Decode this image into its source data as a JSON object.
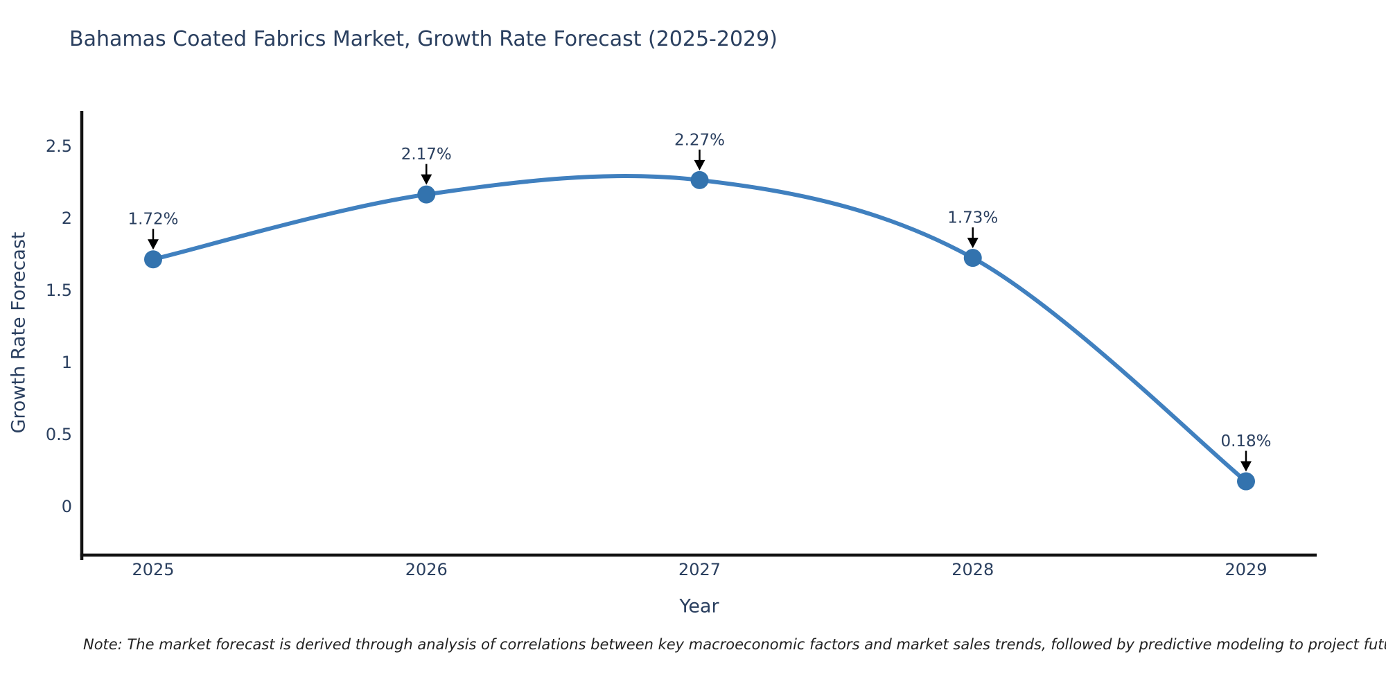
{
  "title": "Bahamas Coated Fabrics Market, Growth Rate Forecast (2025-2029)",
  "note": "Note: The market forecast is derived through analysis of correlations between key macroeconomic factors and market sales trends, followed by predictive modeling to project future sales",
  "chart_data": {
    "type": "line",
    "title": "Bahamas Coated Fabrics Market, Growth Rate Forecast (2025-2029)",
    "xlabel": "Year",
    "ylabel": "Growth Rate Forecast",
    "x": [
      2025,
      2026,
      2027,
      2028,
      2029
    ],
    "series": [
      {
        "name": "Growth Rate Forecast",
        "values": [
          1.72,
          2.17,
          2.27,
          1.73,
          0.18
        ],
        "point_labels": [
          "1.72%",
          "2.17%",
          "2.27%",
          "1.73%",
          "0.18%"
        ]
      }
    ],
    "yticks": [
      "0",
      "0.5",
      "1",
      "1.5",
      "2",
      "2.5"
    ],
    "ytick_values": [
      0,
      0.5,
      1,
      1.5,
      2,
      2.5
    ],
    "ylim": [
      -0.33,
      3.08
    ],
    "grid": false,
    "legend": "none",
    "line_shape": "spline",
    "annotation_style": "down-arrow",
    "colors": {
      "line": "#4080bf",
      "marker": "#3373ae",
      "arrow": "#000000",
      "text": "#2a3f5f",
      "axis": "#111111",
      "background": "#ffffff"
    }
  }
}
